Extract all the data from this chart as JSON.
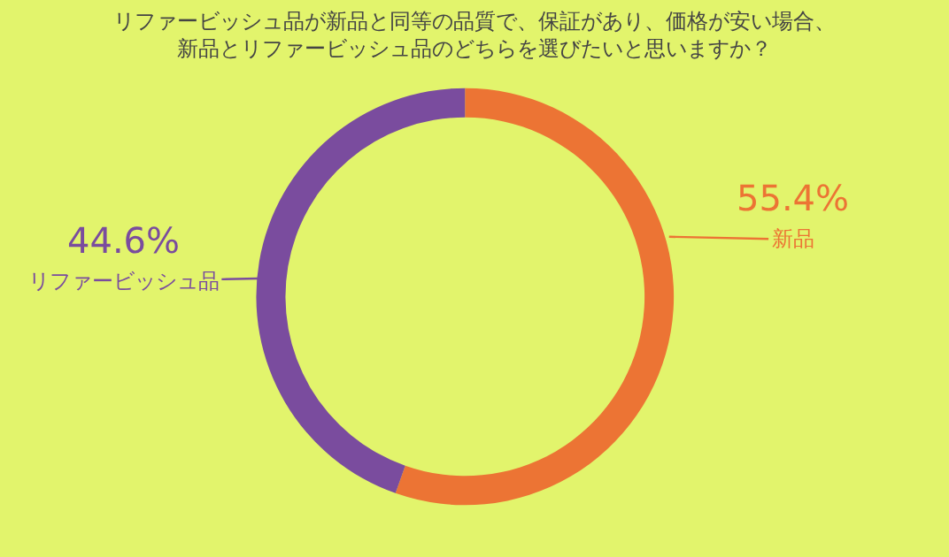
{
  "chart_data": {
    "type": "donut",
    "title": "リファービッシュ品が新品と同等の品質で、保証があり、価格が安い場合、",
    "subtitle": "新品とリファービッシュ品のどちらを選びたいと思いますか？",
    "categories": [
      "新品",
      "リファービッシュ品"
    ],
    "values": [
      55.4,
      44.6
    ],
    "value_labels": [
      "55.4%",
      "44.6%"
    ],
    "colors": [
      "#ec7434",
      "#7a4c9e"
    ],
    "legend": false
  }
}
